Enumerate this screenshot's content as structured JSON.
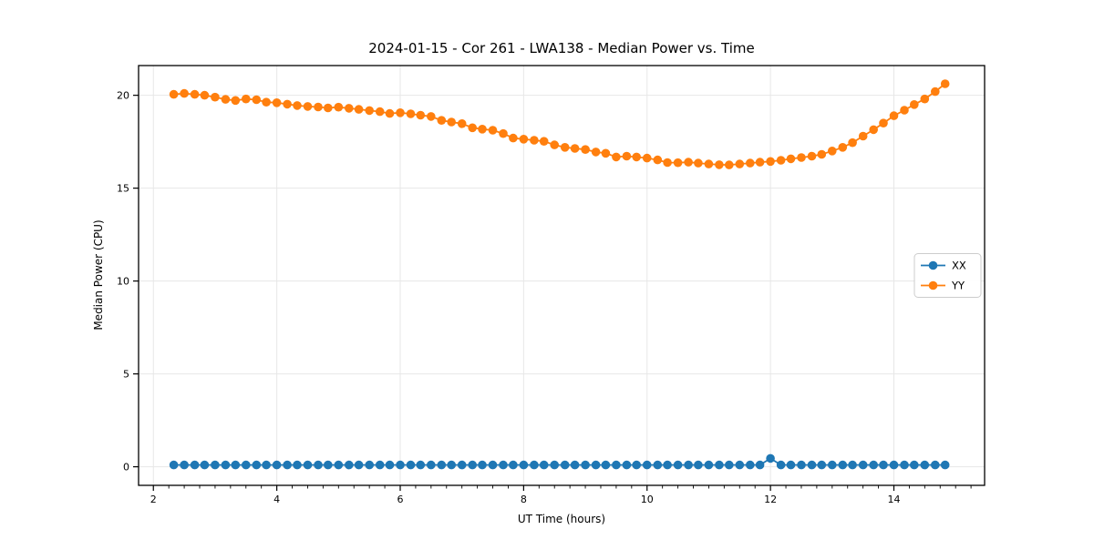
{
  "figure": {
    "title": "2024-01-15 - Cor 261 - LWA138 - Median Power vs. Time",
    "xlabel": "UT Time (hours)",
    "ylabel": "Median Power (CPU)"
  },
  "chart_data": {
    "type": "line",
    "title": "2024-01-15 - Cor 261 - LWA138 - Median Power vs. Time",
    "xlabel": "UT Time (hours)",
    "ylabel": "Median Power (CPU)",
    "xlim": [
      1.76,
      15.47
    ],
    "ylim": [
      -1.0,
      21.6
    ],
    "xticks": [
      2,
      4,
      6,
      8,
      10,
      12,
      14
    ],
    "x_tick_labels": [
      "2",
      "4",
      "6",
      "8",
      "10",
      "12",
      "14"
    ],
    "x_minor_step": 0.25,
    "yticks": [
      0,
      5,
      10,
      15,
      20
    ],
    "y_tick_labels": [
      "0",
      "5",
      "10",
      "15",
      "20"
    ],
    "grid": true,
    "legend": {
      "position": "center right",
      "entries": [
        "XX",
        "YY"
      ]
    },
    "style": {
      "grid_color": "#e7e7e7",
      "spine_color": "#000000",
      "background": "#ffffff",
      "legend_border": "#cccccc",
      "marker_radius": 4.8,
      "line_width": 1.8
    },
    "x": [
      2.33,
      2.5,
      2.67,
      2.83,
      3.0,
      3.17,
      3.33,
      3.5,
      3.67,
      3.83,
      4.0,
      4.17,
      4.33,
      4.5,
      4.67,
      4.83,
      5.0,
      5.17,
      5.33,
      5.5,
      5.67,
      5.83,
      6.0,
      6.17,
      6.33,
      6.5,
      6.67,
      6.83,
      7.0,
      7.17,
      7.33,
      7.5,
      7.67,
      7.83,
      8.0,
      8.17,
      8.33,
      8.5,
      8.67,
      8.83,
      9.0,
      9.17,
      9.33,
      9.5,
      9.67,
      9.83,
      10.0,
      10.17,
      10.33,
      10.5,
      10.67,
      10.83,
      11.0,
      11.17,
      11.33,
      11.5,
      11.67,
      11.83,
      12.0,
      12.17,
      12.33,
      12.5,
      12.67,
      12.83,
      13.0,
      13.17,
      13.33,
      13.5,
      13.67,
      13.83,
      14.0,
      14.17,
      14.33,
      14.5,
      14.67,
      14.83
    ],
    "series": [
      {
        "name": "XX",
        "color": "#1f77b4",
        "marker": "circle",
        "y": [
          0.1,
          0.1,
          0.1,
          0.1,
          0.1,
          0.1,
          0.1,
          0.1,
          0.1,
          0.1,
          0.1,
          0.1,
          0.1,
          0.1,
          0.1,
          0.1,
          0.1,
          0.1,
          0.1,
          0.1,
          0.1,
          0.1,
          0.1,
          0.1,
          0.1,
          0.1,
          0.1,
          0.1,
          0.1,
          0.1,
          0.1,
          0.1,
          0.1,
          0.1,
          0.1,
          0.1,
          0.1,
          0.1,
          0.1,
          0.1,
          0.1,
          0.1,
          0.1,
          0.1,
          0.1,
          0.1,
          0.1,
          0.1,
          0.1,
          0.1,
          0.1,
          0.1,
          0.1,
          0.1,
          0.1,
          0.1,
          0.1,
          0.1,
          0.45,
          0.1,
          0.1,
          0.1,
          0.1,
          0.1,
          0.1,
          0.1,
          0.1,
          0.1,
          0.1,
          0.1,
          0.1,
          0.1,
          0.1,
          0.1,
          0.1,
          0.1
        ]
      },
      {
        "name": "YY",
        "color": "#ff7f0e",
        "marker": "circle",
        "y": [
          20.05,
          20.1,
          20.05,
          20.0,
          19.9,
          19.78,
          19.72,
          19.8,
          19.76,
          19.63,
          19.6,
          19.52,
          19.45,
          19.4,
          19.37,
          19.32,
          19.36,
          19.3,
          19.24,
          19.18,
          19.12,
          19.02,
          19.06,
          19.0,
          18.93,
          18.86,
          18.65,
          18.56,
          18.47,
          18.25,
          18.18,
          18.12,
          17.94,
          17.7,
          17.64,
          17.58,
          17.52,
          17.33,
          17.2,
          17.14,
          17.08,
          16.95,
          16.88,
          16.68,
          16.72,
          16.68,
          16.62,
          16.52,
          16.38,
          16.37,
          16.4,
          16.35,
          16.3,
          16.26,
          16.25,
          16.3,
          16.35,
          16.4,
          16.44,
          16.5,
          16.58,
          16.65,
          16.72,
          16.82,
          17.0,
          17.2,
          17.45,
          17.8,
          18.15,
          18.5,
          18.9,
          19.2,
          19.5,
          19.8,
          20.2,
          20.62
        ]
      }
    ]
  }
}
